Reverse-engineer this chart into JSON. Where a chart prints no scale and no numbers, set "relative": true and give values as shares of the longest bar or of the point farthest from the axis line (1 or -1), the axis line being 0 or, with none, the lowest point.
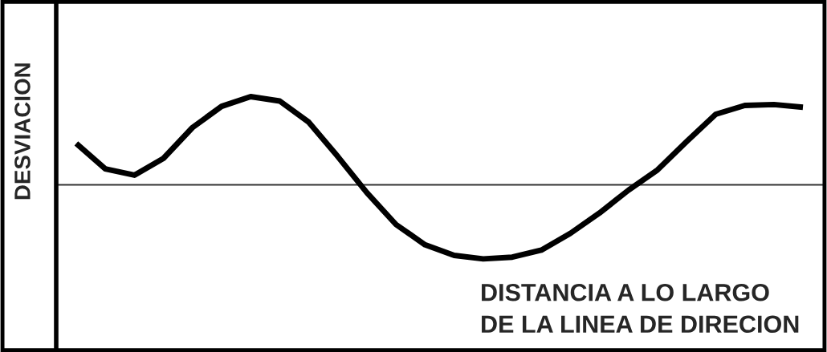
{
  "chart_data": {
    "type": "line",
    "relative": true,
    "xlabel": "DISTANCIA A LO LARGO\nDE LA LINEA DE DIRECION",
    "ylabel": "DESVIACION",
    "legend": false,
    "categories": [
      null,
      null,
      null,
      null,
      null,
      null,
      null,
      null,
      null,
      null,
      null,
      null,
      null,
      null,
      null,
      null,
      null,
      null,
      null,
      null,
      null,
      null,
      null,
      null,
      null,
      null
    ],
    "series": [
      {
        "color": "#000000",
        "values": [
          0.47,
          0.18,
          0.11,
          0.3,
          0.65,
          0.89,
          1,
          0.95,
          0.71,
          0.32,
          -0.09,
          -0.45,
          -0.68,
          -0.8,
          -0.84,
          -0.82,
          -0.74,
          -0.55,
          -0.32,
          -0.06,
          0.17,
          0.49,
          0.8,
          0.9,
          0.91,
          0.88
        ]
      }
    ]
  }
}
